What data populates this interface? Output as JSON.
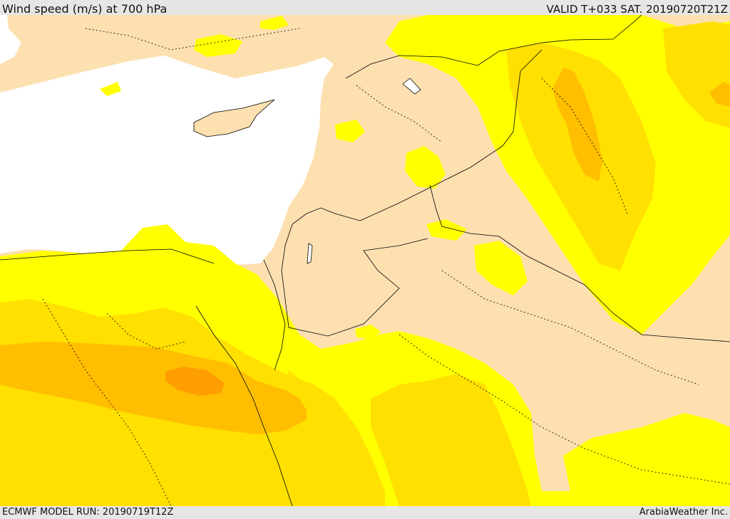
{
  "header": {
    "title": "Wind speed (m/s) at 700 hPa",
    "valid_time": "VALID T+033 SAT. 20190720T21Z"
  },
  "footer": {
    "model_run": "ECMWF MODEL RUN: 20190719T12Z",
    "credit": "ArabiaWeather Inc."
  },
  "colors": {
    "land_calm": "#fde0b0",
    "sea": "#ffffff",
    "band_1": "#ffff00",
    "band_2": "#ffe000",
    "band_3": "#ffbe00",
    "band_4": "#ff9e00",
    "border": "#000000"
  }
}
